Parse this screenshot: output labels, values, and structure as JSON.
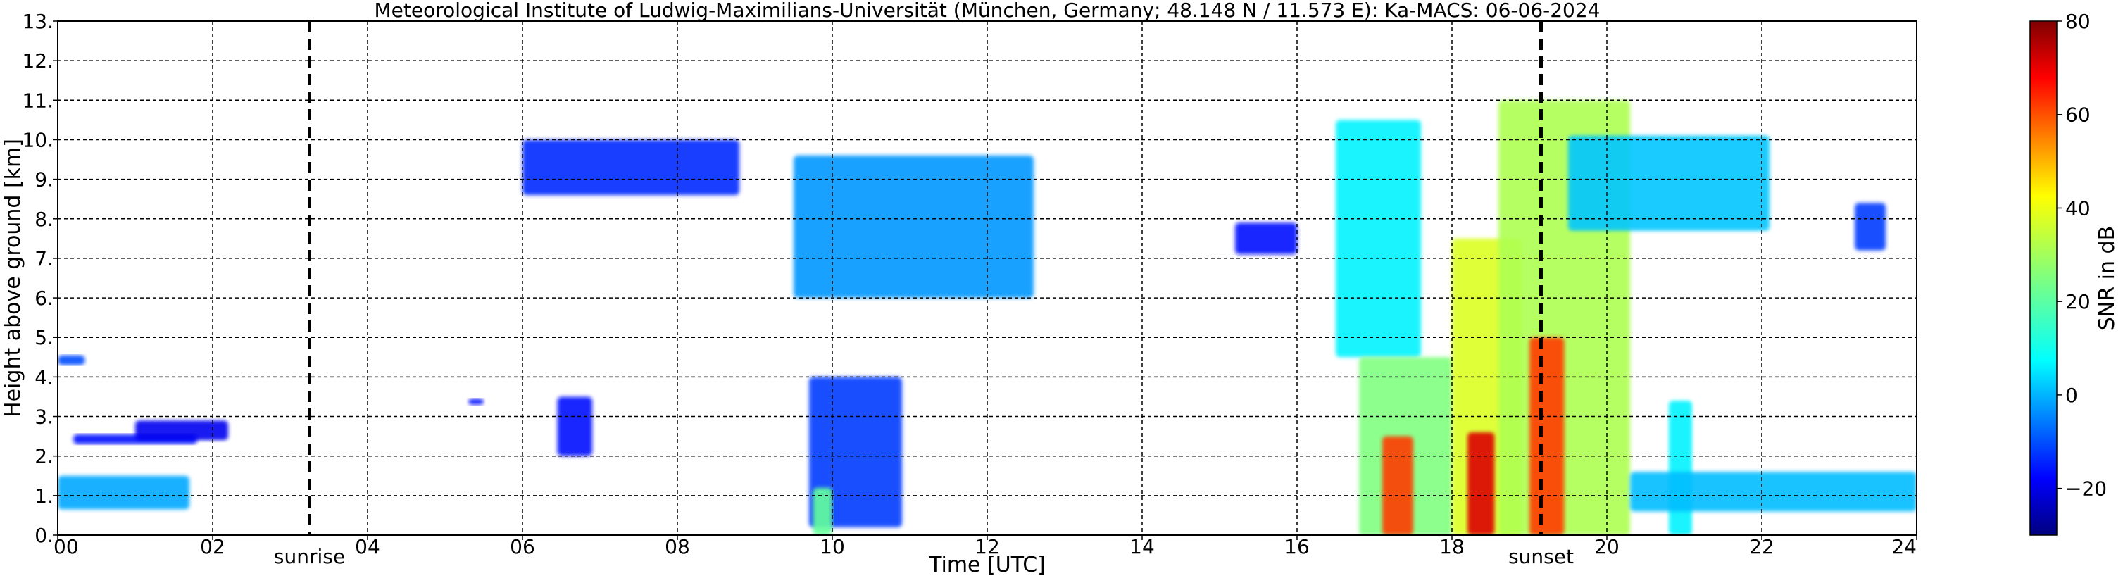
{
  "chart_data": {
    "type": "heatmap",
    "title": "Meteorological Institute of Ludwig-Maximilians-Universität (München, Germany; 48.148 N / 11.573 E):    Ka-MACS: 06-06-2024",
    "xlabel": "Time [UTC]",
    "ylabel": "Height above ground [km]",
    "xlim": [
      0,
      24
    ],
    "ylim": [
      0,
      13
    ],
    "x_ticks": [
      0,
      2,
      4,
      6,
      8,
      10,
      12,
      14,
      16,
      18,
      20,
      22,
      24
    ],
    "x_tick_labels": [
      "00",
      "02",
      "04",
      "06",
      "08",
      "10",
      "12",
      "14",
      "16",
      "18",
      "20",
      "22",
      "24"
    ],
    "y_ticks": [
      0,
      1,
      2,
      3,
      4,
      5,
      6,
      7,
      8,
      9,
      10,
      11,
      12,
      13
    ],
    "y_tick_labels": [
      "0.",
      "1.",
      "2.",
      "3.",
      "4.",
      "5.",
      "6.",
      "7.",
      "8.",
      "9.",
      "10.",
      "11.",
      "12.",
      "13."
    ],
    "grid": true,
    "colorbar": {
      "label": "SNR in dB",
      "range": [
        -30,
        80
      ],
      "ticks": [
        -20,
        0,
        20,
        40,
        60,
        80
      ],
      "tick_labels": [
        "−20",
        "0",
        "20",
        "40",
        "60",
        "80"
      ],
      "colormap": "jet"
    },
    "markers": [
      {
        "label": "sunrise",
        "x": 3.25
      },
      {
        "label": "sunset",
        "x": 19.15
      }
    ],
    "echo_regions": [
      {
        "t": [
          0.0,
          0.35
        ],
        "z": [
          4.3,
          4.55
        ],
        "snr": -8
      },
      {
        "t": [
          0.2,
          1.8
        ],
        "z": [
          2.3,
          2.55
        ],
        "snr": -15
      },
      {
        "t": [
          1.0,
          2.2
        ],
        "z": [
          2.4,
          2.9
        ],
        "snr": -18
      },
      {
        "t": [
          0.0,
          1.7
        ],
        "z": [
          0.65,
          1.5
        ],
        "snr": 2
      },
      {
        "t": [
          5.3,
          5.5
        ],
        "z": [
          3.3,
          3.45
        ],
        "snr": -15
      },
      {
        "t": [
          6.0,
          8.8
        ],
        "z": [
          8.6,
          10.0
        ],
        "snr": -12
      },
      {
        "t": [
          6.45,
          6.9
        ],
        "z": [
          2.0,
          3.5
        ],
        "snr": -15
      },
      {
        "t": [
          9.5,
          12.6
        ],
        "z": [
          6.0,
          9.6
        ],
        "snr": 0
      },
      {
        "t": [
          9.7,
          10.9
        ],
        "z": [
          0.2,
          4.0
        ],
        "snr": -10
      },
      {
        "t": [
          9.75,
          10.0
        ],
        "z": [
          0.0,
          1.2
        ],
        "snr": 22
      },
      {
        "t": [
          15.2,
          16.0
        ],
        "z": [
          7.1,
          7.9
        ],
        "snr": -15
      },
      {
        "t": [
          16.5,
          17.6
        ],
        "z": [
          4.5,
          10.5
        ],
        "snr": 10
      },
      {
        "t": [
          16.8,
          18.0
        ],
        "z": [
          0.0,
          4.5
        ],
        "snr": 25
      },
      {
        "t": [
          17.1,
          17.5
        ],
        "z": [
          0.0,
          2.5
        ],
        "snr": 60
      },
      {
        "t": [
          18.0,
          18.9
        ],
        "z": [
          0.0,
          7.5
        ],
        "snr": 35
      },
      {
        "t": [
          18.2,
          18.55
        ],
        "z": [
          0.0,
          2.6
        ],
        "snr": 70
      },
      {
        "t": [
          18.6,
          20.3
        ],
        "z": [
          0.0,
          11.0
        ],
        "snr": 30
      },
      {
        "t": [
          19.0,
          19.45
        ],
        "z": [
          0.0,
          5.0
        ],
        "snr": 60
      },
      {
        "t": [
          19.5,
          22.1
        ],
        "z": [
          7.7,
          10.1
        ],
        "snr": 5
      },
      {
        "t": [
          20.8,
          21.1
        ],
        "z": [
          0.0,
          3.4
        ],
        "snr": 10
      },
      {
        "t": [
          20.3,
          24.0
        ],
        "z": [
          0.6,
          1.6
        ],
        "snr": 4
      },
      {
        "t": [
          23.2,
          23.6
        ],
        "z": [
          7.2,
          8.4
        ],
        "snr": -10
      }
    ]
  }
}
